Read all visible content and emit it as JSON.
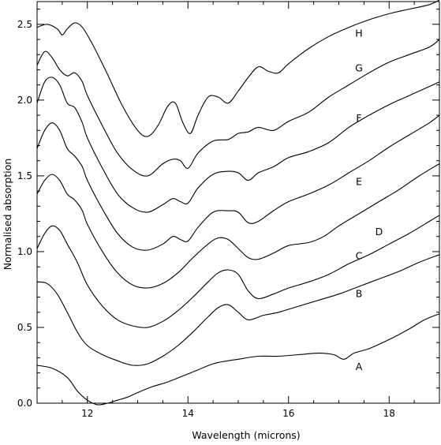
{
  "chart_data": {
    "type": "line",
    "title": "",
    "xlabel": "Wavelength (microns)",
    "ylabel": "Normalised absorption",
    "xlim": [
      11,
      19
    ],
    "ylim": [
      0,
      2.65
    ],
    "x_ticks": [
      12,
      14,
      16,
      18
    ],
    "x_tick_labels": [
      "12",
      "14",
      "16",
      "18"
    ],
    "y_ticks": [
      0,
      0.5,
      1.0,
      1.5,
      2.0,
      2.5
    ],
    "y_tick_labels": [
      "0.0",
      "0.5",
      "1.0",
      "1.5",
      "2.0",
      "2.5"
    ],
    "grid": false,
    "legend": "none",
    "line_color": "#000000",
    "series": [
      {
        "name": "A",
        "label_pos": [
          17.4,
          0.24
        ],
        "points": [
          [
            11.0,
            0.25
          ],
          [
            11.3,
            0.23
          ],
          [
            11.6,
            0.17
          ],
          [
            11.8,
            0.08
          ],
          [
            12.0,
            0.02
          ],
          [
            12.2,
            -0.01
          ],
          [
            12.4,
            0.0
          ],
          [
            12.6,
            0.02
          ],
          [
            12.8,
            0.04
          ],
          [
            13.0,
            0.07
          ],
          [
            13.3,
            0.11
          ],
          [
            13.6,
            0.14
          ],
          [
            13.9,
            0.18
          ],
          [
            14.2,
            0.22
          ],
          [
            14.5,
            0.26
          ],
          [
            14.8,
            0.28
          ],
          [
            15.0,
            0.29
          ],
          [
            15.4,
            0.31
          ],
          [
            15.8,
            0.31
          ],
          [
            16.2,
            0.32
          ],
          [
            16.6,
            0.33
          ],
          [
            16.9,
            0.32
          ],
          [
            17.1,
            0.29
          ],
          [
            17.3,
            0.33
          ],
          [
            17.6,
            0.36
          ],
          [
            18.0,
            0.42
          ],
          [
            18.4,
            0.49
          ],
          [
            18.7,
            0.55
          ],
          [
            19.0,
            0.59
          ]
        ]
      },
      {
        "name": "B",
        "label_pos": [
          17.4,
          0.72
        ],
        "points": [
          [
            11.0,
            0.8
          ],
          [
            11.2,
            0.79
          ],
          [
            11.4,
            0.72
          ],
          [
            11.6,
            0.6
          ],
          [
            11.8,
            0.47
          ],
          [
            12.0,
            0.38
          ],
          [
            12.3,
            0.32
          ],
          [
            12.6,
            0.28
          ],
          [
            12.9,
            0.25
          ],
          [
            13.2,
            0.26
          ],
          [
            13.5,
            0.31
          ],
          [
            13.8,
            0.38
          ],
          [
            14.1,
            0.47
          ],
          [
            14.4,
            0.57
          ],
          [
            14.6,
            0.63
          ],
          [
            14.8,
            0.65
          ],
          [
            15.0,
            0.6
          ],
          [
            15.2,
            0.55
          ],
          [
            15.5,
            0.58
          ],
          [
            15.8,
            0.6
          ],
          [
            16.2,
            0.64
          ],
          [
            16.6,
            0.68
          ],
          [
            17.0,
            0.72
          ],
          [
            17.4,
            0.77
          ],
          [
            17.8,
            0.82
          ],
          [
            18.2,
            0.87
          ],
          [
            18.6,
            0.93
          ],
          [
            19.0,
            0.98
          ]
        ]
      },
      {
        "name": "C",
        "label_pos": [
          17.4,
          0.97
        ],
        "points": [
          [
            11.0,
            1.02
          ],
          [
            11.15,
            1.12
          ],
          [
            11.3,
            1.17
          ],
          [
            11.45,
            1.14
          ],
          [
            11.6,
            1.05
          ],
          [
            11.8,
            0.93
          ],
          [
            12.0,
            0.78
          ],
          [
            12.3,
            0.64
          ],
          [
            12.6,
            0.55
          ],
          [
            12.9,
            0.51
          ],
          [
            13.2,
            0.5
          ],
          [
            13.5,
            0.54
          ],
          [
            13.8,
            0.61
          ],
          [
            14.1,
            0.7
          ],
          [
            14.4,
            0.8
          ],
          [
            14.6,
            0.86
          ],
          [
            14.8,
            0.88
          ],
          [
            15.0,
            0.85
          ],
          [
            15.2,
            0.74
          ],
          [
            15.4,
            0.69
          ],
          [
            15.7,
            0.72
          ],
          [
            16.0,
            0.76
          ],
          [
            16.4,
            0.8
          ],
          [
            16.8,
            0.85
          ],
          [
            17.2,
            0.92
          ],
          [
            17.6,
            0.98
          ],
          [
            18.0,
            1.05
          ],
          [
            18.4,
            1.12
          ],
          [
            18.8,
            1.2
          ],
          [
            19.0,
            1.24
          ]
        ]
      },
      {
        "name": "D",
        "label_pos": [
          17.8,
          1.13
        ],
        "points": [
          [
            11.0,
            1.38
          ],
          [
            11.15,
            1.47
          ],
          [
            11.3,
            1.51
          ],
          [
            11.45,
            1.47
          ],
          [
            11.6,
            1.38
          ],
          [
            11.75,
            1.34
          ],
          [
            11.9,
            1.27
          ],
          [
            12.0,
            1.18
          ],
          [
            12.3,
            1.0
          ],
          [
            12.6,
            0.86
          ],
          [
            12.9,
            0.78
          ],
          [
            13.2,
            0.76
          ],
          [
            13.5,
            0.79
          ],
          [
            13.8,
            0.86
          ],
          [
            14.1,
            0.96
          ],
          [
            14.4,
            1.05
          ],
          [
            14.6,
            1.09
          ],
          [
            14.8,
            1.08
          ],
          [
            15.0,
            1.02
          ],
          [
            15.2,
            0.96
          ],
          [
            15.4,
            0.95
          ],
          [
            15.7,
            0.99
          ],
          [
            16.0,
            1.04
          ],
          [
            16.4,
            1.06
          ],
          [
            16.7,
            1.1
          ],
          [
            17.0,
            1.17
          ],
          [
            17.4,
            1.25
          ],
          [
            17.8,
            1.33
          ],
          [
            18.2,
            1.41
          ],
          [
            18.6,
            1.5
          ],
          [
            19.0,
            1.58
          ]
        ]
      },
      {
        "name": "E",
        "label_pos": [
          17.4,
          1.46
        ],
        "points": [
          [
            11.0,
            1.68
          ],
          [
            11.15,
            1.8
          ],
          [
            11.3,
            1.85
          ],
          [
            11.45,
            1.8
          ],
          [
            11.6,
            1.68
          ],
          [
            11.75,
            1.63
          ],
          [
            11.9,
            1.56
          ],
          [
            12.0,
            1.47
          ],
          [
            12.3,
            1.28
          ],
          [
            12.6,
            1.12
          ],
          [
            12.9,
            1.03
          ],
          [
            13.2,
            1.01
          ],
          [
            13.5,
            1.05
          ],
          [
            13.7,
            1.1
          ],
          [
            13.85,
            1.08
          ],
          [
            14.0,
            1.07
          ],
          [
            14.2,
            1.16
          ],
          [
            14.5,
            1.26
          ],
          [
            14.8,
            1.27
          ],
          [
            15.0,
            1.26
          ],
          [
            15.2,
            1.19
          ],
          [
            15.4,
            1.2
          ],
          [
            15.7,
            1.27
          ],
          [
            16.0,
            1.33
          ],
          [
            16.4,
            1.38
          ],
          [
            16.8,
            1.44
          ],
          [
            17.2,
            1.52
          ],
          [
            17.6,
            1.6
          ],
          [
            18.0,
            1.69
          ],
          [
            18.4,
            1.77
          ],
          [
            18.8,
            1.85
          ],
          [
            19.0,
            1.9
          ]
        ]
      },
      {
        "name": "F",
        "label_pos": [
          17.4,
          1.88
        ],
        "points": [
          [
            11.0,
            1.98
          ],
          [
            11.15,
            2.12
          ],
          [
            11.3,
            2.15
          ],
          [
            11.45,
            2.1
          ],
          [
            11.6,
            1.98
          ],
          [
            11.75,
            1.95
          ],
          [
            11.9,
            1.85
          ],
          [
            12.0,
            1.75
          ],
          [
            12.3,
            1.55
          ],
          [
            12.6,
            1.38
          ],
          [
            12.9,
            1.29
          ],
          [
            13.2,
            1.26
          ],
          [
            13.5,
            1.31
          ],
          [
            13.7,
            1.35
          ],
          [
            13.85,
            1.33
          ],
          [
            14.0,
            1.32
          ],
          [
            14.2,
            1.42
          ],
          [
            14.5,
            1.51
          ],
          [
            14.8,
            1.53
          ],
          [
            15.0,
            1.52
          ],
          [
            15.2,
            1.47
          ],
          [
            15.4,
            1.52
          ],
          [
            15.7,
            1.56
          ],
          [
            16.0,
            1.62
          ],
          [
            16.4,
            1.66
          ],
          [
            16.8,
            1.72
          ],
          [
            17.2,
            1.82
          ],
          [
            17.6,
            1.9
          ],
          [
            18.0,
            1.97
          ],
          [
            18.4,
            2.03
          ],
          [
            18.8,
            2.09
          ],
          [
            19.0,
            2.12
          ]
        ]
      },
      {
        "name": "G",
        "label_pos": [
          17.4,
          2.21
        ],
        "points": [
          [
            11.0,
            2.23
          ],
          [
            11.15,
            2.32
          ],
          [
            11.3,
            2.28
          ],
          [
            11.45,
            2.2
          ],
          [
            11.6,
            2.16
          ],
          [
            11.75,
            2.18
          ],
          [
            11.9,
            2.12
          ],
          [
            12.0,
            2.03
          ],
          [
            12.3,
            1.83
          ],
          [
            12.6,
            1.65
          ],
          [
            12.9,
            1.54
          ],
          [
            13.2,
            1.5
          ],
          [
            13.5,
            1.58
          ],
          [
            13.7,
            1.61
          ],
          [
            13.85,
            1.6
          ],
          [
            14.0,
            1.55
          ],
          [
            14.2,
            1.65
          ],
          [
            14.5,
            1.73
          ],
          [
            14.8,
            1.74
          ],
          [
            15.0,
            1.78
          ],
          [
            15.2,
            1.79
          ],
          [
            15.4,
            1.82
          ],
          [
            15.7,
            1.8
          ],
          [
            16.0,
            1.86
          ],
          [
            16.4,
            1.92
          ],
          [
            16.8,
            2.02
          ],
          [
            17.2,
            2.1
          ],
          [
            17.6,
            2.18
          ],
          [
            18.0,
            2.25
          ],
          [
            18.4,
            2.3
          ],
          [
            18.8,
            2.35
          ],
          [
            19.0,
            2.4
          ]
        ]
      },
      {
        "name": "H",
        "label_pos": [
          17.4,
          2.44
        ],
        "points": [
          [
            11.0,
            2.48
          ],
          [
            11.2,
            2.5
          ],
          [
            11.4,
            2.47
          ],
          [
            11.5,
            2.43
          ],
          [
            11.6,
            2.47
          ],
          [
            11.75,
            2.51
          ],
          [
            11.9,
            2.48
          ],
          [
            12.1,
            2.37
          ],
          [
            12.4,
            2.17
          ],
          [
            12.7,
            1.96
          ],
          [
            13.0,
            1.8
          ],
          [
            13.2,
            1.76
          ],
          [
            13.4,
            1.83
          ],
          [
            13.6,
            1.96
          ],
          [
            13.75,
            1.98
          ],
          [
            13.9,
            1.85
          ],
          [
            14.05,
            1.78
          ],
          [
            14.2,
            1.9
          ],
          [
            14.4,
            2.02
          ],
          [
            14.6,
            2.02
          ],
          [
            14.8,
            1.98
          ],
          [
            15.0,
            2.06
          ],
          [
            15.2,
            2.15
          ],
          [
            15.4,
            2.22
          ],
          [
            15.6,
            2.19
          ],
          [
            15.8,
            2.18
          ],
          [
            16.0,
            2.24
          ],
          [
            16.4,
            2.34
          ],
          [
            16.8,
            2.42
          ],
          [
            17.2,
            2.48
          ],
          [
            17.6,
            2.53
          ],
          [
            18.0,
            2.57
          ],
          [
            18.4,
            2.6
          ],
          [
            18.8,
            2.63
          ],
          [
            19.0,
            2.66
          ]
        ]
      }
    ]
  }
}
